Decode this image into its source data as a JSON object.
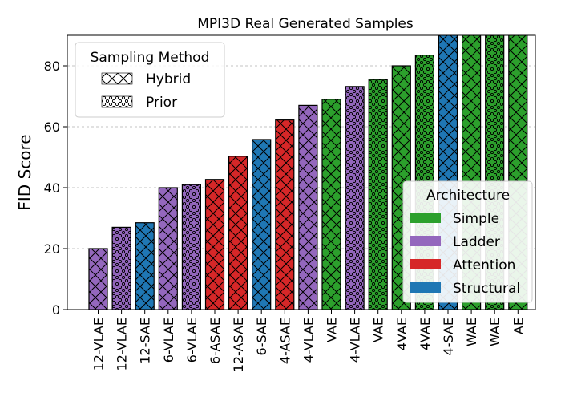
{
  "chart_data": {
    "type": "bar",
    "title": "MPI3D Real Generated Samples",
    "ylabel": "FID Score",
    "xlabel": "",
    "ylim": [
      0,
      90
    ],
    "yticks": [
      0,
      20,
      40,
      60,
      80
    ],
    "grid": "y-dashed",
    "colors": {
      "Simple": "#2ca02c",
      "Ladder": "#9467bd",
      "Attention": "#d62728",
      "Structural": "#1f77b4"
    },
    "bars": [
      {
        "label": "12-VLAE",
        "value": 20,
        "architecture": "Ladder",
        "sampling": "Hybrid"
      },
      {
        "label": "12-VLAE",
        "value": 27,
        "architecture": "Ladder",
        "sampling": "Prior"
      },
      {
        "label": "12-SAE",
        "value": 28.5,
        "architecture": "Structural",
        "sampling": "Hybrid"
      },
      {
        "label": "6-VLAE",
        "value": 40,
        "architecture": "Ladder",
        "sampling": "Hybrid"
      },
      {
        "label": "6-VLAE",
        "value": 41,
        "architecture": "Ladder",
        "sampling": "Prior"
      },
      {
        "label": "6-ASAE",
        "value": 42.7,
        "architecture": "Attention",
        "sampling": "Hybrid"
      },
      {
        "label": "12-ASAE",
        "value": 50.3,
        "architecture": "Attention",
        "sampling": "Hybrid"
      },
      {
        "label": "6-SAE",
        "value": 55.8,
        "architecture": "Structural",
        "sampling": "Hybrid"
      },
      {
        "label": "4-ASAE",
        "value": 62.2,
        "architecture": "Attention",
        "sampling": "Hybrid"
      },
      {
        "label": "4-VLAE",
        "value": 67,
        "architecture": "Ladder",
        "sampling": "Hybrid"
      },
      {
        "label": "VAE",
        "value": 69,
        "architecture": "Simple",
        "sampling": "Hybrid"
      },
      {
        "label": "4-VLAE",
        "value": 73.2,
        "architecture": "Ladder",
        "sampling": "Prior"
      },
      {
        "label": "VAE",
        "value": 75.5,
        "architecture": "Simple",
        "sampling": "Prior"
      },
      {
        "label": "4VAE",
        "value": 80,
        "architecture": "Simple",
        "sampling": "Hybrid"
      },
      {
        "label": "4VAE",
        "value": 83.5,
        "architecture": "Simple",
        "sampling": "Prior"
      },
      {
        "label": "4-SAE",
        "value": 91,
        "architecture": "Structural",
        "sampling": "Hybrid"
      },
      {
        "label": "WAE",
        "value": 91,
        "architecture": "Simple",
        "sampling": "Hybrid"
      },
      {
        "label": "WAE",
        "value": 91,
        "architecture": "Simple",
        "sampling": "Prior"
      },
      {
        "label": "AE",
        "value": 91,
        "architecture": "Simple",
        "sampling": "Hybrid"
      }
    ],
    "legend_sampling": {
      "title": "Sampling Method",
      "placement": "top-left",
      "entries": [
        {
          "name": "Hybrid",
          "hatch": "crosshatch"
        },
        {
          "name": "Prior",
          "hatch": "dots"
        }
      ]
    },
    "legend_architecture": {
      "title": "Architecture",
      "placement": "bottom-right",
      "entries": [
        "Simple",
        "Ladder",
        "Attention",
        "Structural"
      ]
    }
  }
}
